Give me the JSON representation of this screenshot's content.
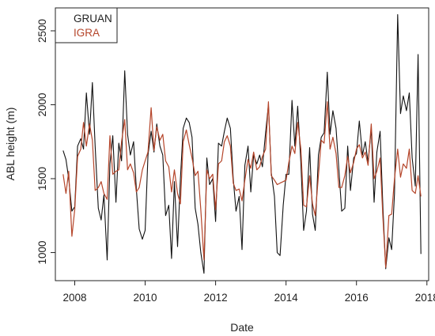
{
  "chart_data": {
    "type": "line",
    "xlabel": "Date",
    "ylabel": "ABL height (m)",
    "xlim": [
      2007.45,
      2018.05
    ],
    "ylim": [
      810,
      2655
    ],
    "x_ticks": [
      2008,
      2010,
      2012,
      2014,
      2016,
      2018
    ],
    "x_tick_labels": [
      "2008",
      "2010",
      "2012",
      "2014",
      "2016",
      "2018"
    ],
    "y_ticks": [
      1000,
      1500,
      2000,
      2500
    ],
    "y_tick_labels": [
      "1000",
      "1500",
      "2000",
      "2500"
    ],
    "legend": {
      "position": "top-left",
      "entries": [
        "GRUAN",
        "IGRA"
      ]
    },
    "grid": false,
    "series": [
      {
        "name": "GRUAN",
        "color": "#111111",
        "points": [
          [
            2007.67,
            1690
          ],
          [
            2007.75,
            1630
          ],
          [
            2007.83,
            1500
          ],
          [
            2007.92,
            1280
          ],
          [
            2008.0,
            1310
          ],
          [
            2008.08,
            1720
          ],
          [
            2008.17,
            1770
          ],
          [
            2008.25,
            1700
          ],
          [
            2008.33,
            2080
          ],
          [
            2008.42,
            1800
          ],
          [
            2008.5,
            2150
          ],
          [
            2008.58,
            1720
          ],
          [
            2008.67,
            1300
          ],
          [
            2008.75,
            1220
          ],
          [
            2008.83,
            1390
          ],
          [
            2008.92,
            950
          ],
          [
            2009.0,
            1600
          ],
          [
            2009.08,
            1790
          ],
          [
            2009.17,
            1340
          ],
          [
            2009.25,
            1740
          ],
          [
            2009.33,
            1620
          ],
          [
            2009.42,
            2230
          ],
          [
            2009.5,
            1800
          ],
          [
            2009.58,
            1660
          ],
          [
            2009.67,
            1750
          ],
          [
            2009.75,
            1430
          ],
          [
            2009.83,
            1160
          ],
          [
            2009.92,
            1090
          ],
          [
            2010.0,
            1150
          ],
          [
            2010.08,
            1660
          ],
          [
            2010.17,
            1820
          ],
          [
            2010.25,
            1680
          ],
          [
            2010.33,
            1870
          ],
          [
            2010.42,
            1720
          ],
          [
            2010.5,
            1660
          ],
          [
            2010.58,
            1250
          ],
          [
            2010.67,
            1320
          ],
          [
            2010.75,
            960
          ],
          [
            2010.83,
            1480
          ],
          [
            2010.92,
            1040
          ],
          [
            2011.0,
            1500
          ],
          [
            2011.08,
            1840
          ],
          [
            2011.17,
            1910
          ],
          [
            2011.25,
            1880
          ],
          [
            2011.33,
            1780
          ],
          [
            2011.42,
            1300
          ],
          [
            2011.5,
            1190
          ],
          [
            2011.58,
            1000
          ],
          [
            2011.67,
            860
          ],
          [
            2011.75,
            1640
          ],
          [
            2011.83,
            1460
          ],
          [
            2011.92,
            1500
          ],
          [
            2012.0,
            1210
          ],
          [
            2012.08,
            1740
          ],
          [
            2012.17,
            1720
          ],
          [
            2012.25,
            1820
          ],
          [
            2012.33,
            1910
          ],
          [
            2012.42,
            1840
          ],
          [
            2012.5,
            1500
          ],
          [
            2012.58,
            1280
          ],
          [
            2012.67,
            1380
          ],
          [
            2012.75,
            1020
          ],
          [
            2012.83,
            1590
          ],
          [
            2012.92,
            1720
          ],
          [
            2013.0,
            1410
          ],
          [
            2013.08,
            1660
          ],
          [
            2013.17,
            1600
          ],
          [
            2013.25,
            1660
          ],
          [
            2013.33,
            1580
          ],
          [
            2013.42,
            1810
          ],
          [
            2013.5,
            2000
          ],
          [
            2013.58,
            1540
          ],
          [
            2013.67,
            1380
          ],
          [
            2013.75,
            1000
          ],
          [
            2013.83,
            980
          ],
          [
            2013.92,
            1320
          ],
          [
            2014.0,
            1530
          ],
          [
            2014.08,
            1530
          ],
          [
            2014.17,
            2030
          ],
          [
            2014.25,
            1720
          ],
          [
            2014.33,
            1990
          ],
          [
            2014.42,
            1610
          ],
          [
            2014.5,
            1150
          ],
          [
            2014.58,
            1280
          ],
          [
            2014.67,
            1710
          ],
          [
            2014.75,
            1260
          ],
          [
            2014.83,
            1150
          ],
          [
            2014.92,
            1660
          ],
          [
            2015.0,
            1780
          ],
          [
            2015.08,
            1810
          ],
          [
            2015.17,
            2220
          ],
          [
            2015.25,
            1800
          ],
          [
            2015.33,
            1960
          ],
          [
            2015.42,
            1840
          ],
          [
            2015.5,
            1560
          ],
          [
            2015.58,
            1280
          ],
          [
            2015.67,
            1300
          ],
          [
            2015.75,
            1720
          ],
          [
            2015.83,
            1420
          ],
          [
            2015.92,
            1640
          ],
          [
            2016.0,
            1670
          ],
          [
            2016.08,
            1890
          ],
          [
            2016.17,
            1660
          ],
          [
            2016.25,
            1750
          ],
          [
            2016.33,
            1610
          ],
          [
            2016.42,
            1840
          ],
          [
            2016.5,
            1340
          ],
          [
            2016.58,
            1680
          ],
          [
            2016.67,
            1820
          ],
          [
            2016.75,
            1310
          ],
          [
            2016.83,
            890
          ],
          [
            2016.92,
            1100
          ],
          [
            2017.0,
            1020
          ],
          [
            2017.08,
            1400
          ],
          [
            2017.17,
            2610
          ],
          [
            2017.25,
            1940
          ],
          [
            2017.33,
            2060
          ],
          [
            2017.42,
            1960
          ],
          [
            2017.5,
            2080
          ],
          [
            2017.58,
            1640
          ],
          [
            2017.67,
            1450
          ],
          [
            2017.75,
            2340
          ],
          [
            2017.83,
            990
          ]
        ]
      },
      {
        "name": "IGRA",
        "color": "#b5452a",
        "points": [
          [
            2007.67,
            1530
          ],
          [
            2007.75,
            1400
          ],
          [
            2007.83,
            1550
          ],
          [
            2007.92,
            1110
          ],
          [
            2008.0,
            1290
          ],
          [
            2008.08,
            1650
          ],
          [
            2008.17,
            1700
          ],
          [
            2008.25,
            1880
          ],
          [
            2008.33,
            1720
          ],
          [
            2008.42,
            1870
          ],
          [
            2008.5,
            1760
          ],
          [
            2008.58,
            1420
          ],
          [
            2008.67,
            1440
          ],
          [
            2008.75,
            1480
          ],
          [
            2008.83,
            1400
          ],
          [
            2008.92,
            1360
          ],
          [
            2009.0,
            1790
          ],
          [
            2009.08,
            1530
          ],
          [
            2009.17,
            1550
          ],
          [
            2009.25,
            1560
          ],
          [
            2009.33,
            1750
          ],
          [
            2009.42,
            1900
          ],
          [
            2009.5,
            1560
          ],
          [
            2009.58,
            1600
          ],
          [
            2009.67,
            1540
          ],
          [
            2009.75,
            1410
          ],
          [
            2009.83,
            1440
          ],
          [
            2009.92,
            1560
          ],
          [
            2010.0,
            1620
          ],
          [
            2010.08,
            1680
          ],
          [
            2010.17,
            1980
          ],
          [
            2010.25,
            1690
          ],
          [
            2010.33,
            1850
          ],
          [
            2010.42,
            1760
          ],
          [
            2010.5,
            1800
          ],
          [
            2010.58,
            1620
          ],
          [
            2010.67,
            1580
          ],
          [
            2010.75,
            1410
          ],
          [
            2010.83,
            1560
          ],
          [
            2010.92,
            1400
          ],
          [
            2011.0,
            1330
          ],
          [
            2011.08,
            1750
          ],
          [
            2011.17,
            1830
          ],
          [
            2011.25,
            1730
          ],
          [
            2011.33,
            1640
          ],
          [
            2011.42,
            1520
          ],
          [
            2011.5,
            1550
          ],
          [
            2011.58,
            1290
          ],
          [
            2011.67,
            950
          ],
          [
            2011.75,
            1560
          ],
          [
            2011.83,
            1500
          ],
          [
            2011.92,
            1530
          ],
          [
            2012.0,
            1290
          ],
          [
            2012.08,
            1600
          ],
          [
            2012.17,
            1620
          ],
          [
            2012.25,
            1750
          ],
          [
            2012.33,
            1790
          ],
          [
            2012.42,
            1720
          ],
          [
            2012.5,
            1470
          ],
          [
            2012.58,
            1420
          ],
          [
            2012.67,
            1430
          ],
          [
            2012.75,
            1350
          ],
          [
            2012.83,
            1490
          ],
          [
            2012.92,
            1630
          ],
          [
            2013.0,
            1570
          ],
          [
            2013.08,
            1680
          ],
          [
            2013.17,
            1560
          ],
          [
            2013.25,
            1580
          ],
          [
            2013.33,
            1650
          ],
          [
            2013.42,
            1700
          ],
          [
            2013.5,
            2020
          ],
          [
            2013.58,
            1520
          ],
          [
            2013.67,
            1490
          ],
          [
            2013.75,
            1460
          ],
          [
            2013.83,
            1470
          ],
          [
            2013.92,
            1480
          ],
          [
            2014.0,
            1490
          ],
          [
            2014.08,
            1610
          ],
          [
            2014.17,
            1720
          ],
          [
            2014.25,
            1670
          ],
          [
            2014.33,
            1880
          ],
          [
            2014.42,
            1700
          ],
          [
            2014.5,
            1320
          ],
          [
            2014.58,
            1310
          ],
          [
            2014.67,
            1520
          ],
          [
            2014.75,
            1330
          ],
          [
            2014.83,
            1250
          ],
          [
            2014.92,
            1520
          ],
          [
            2015.0,
            1760
          ],
          [
            2015.08,
            1740
          ],
          [
            2015.17,
            2020
          ],
          [
            2015.25,
            1700
          ],
          [
            2015.33,
            1780
          ],
          [
            2015.42,
            1670
          ],
          [
            2015.5,
            1440
          ],
          [
            2015.58,
            1440
          ],
          [
            2015.67,
            1520
          ],
          [
            2015.75,
            1650
          ],
          [
            2015.83,
            1540
          ],
          [
            2015.92,
            1610
          ],
          [
            2016.0,
            1700
          ],
          [
            2016.08,
            1730
          ],
          [
            2016.17,
            1640
          ],
          [
            2016.25,
            1680
          ],
          [
            2016.33,
            1590
          ],
          [
            2016.42,
            1870
          ],
          [
            2016.5,
            1500
          ],
          [
            2016.58,
            1550
          ],
          [
            2016.67,
            1640
          ],
          [
            2016.75,
            1240
          ],
          [
            2016.83,
            900
          ],
          [
            2016.92,
            1250
          ],
          [
            2017.0,
            1260
          ],
          [
            2017.08,
            1500
          ],
          [
            2017.17,
            1700
          ],
          [
            2017.25,
            1510
          ],
          [
            2017.33,
            1600
          ],
          [
            2017.42,
            1570
          ],
          [
            2017.5,
            1700
          ],
          [
            2017.58,
            1420
          ],
          [
            2017.67,
            1400
          ],
          [
            2017.75,
            1520
          ],
          [
            2017.83,
            1380
          ]
        ]
      }
    ]
  }
}
